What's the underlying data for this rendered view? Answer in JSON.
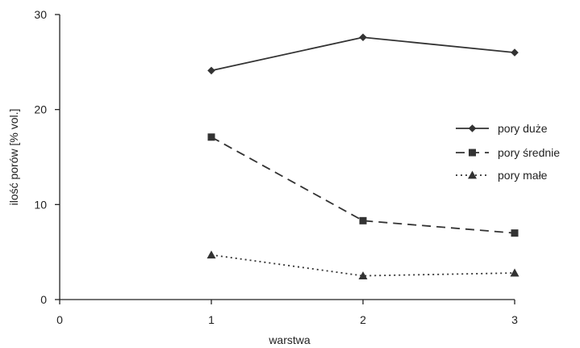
{
  "chart_data": {
    "type": "line",
    "title": "",
    "xlabel": "warstwa",
    "ylabel": "ilość porów [% vol.]",
    "xlim": [
      0,
      3
    ],
    "ylim": [
      0,
      30
    ],
    "x_ticks": [
      "0",
      "1",
      "2",
      "3"
    ],
    "y_ticks": [
      "0",
      "10",
      "20",
      "30"
    ],
    "grid": false,
    "legend_position": "right",
    "x": [
      1,
      2,
      3
    ],
    "series": [
      {
        "name": "pory duże",
        "values": [
          24.1,
          27.6,
          26.0
        ],
        "marker": "diamond",
        "line_style": "solid",
        "color": "#333333"
      },
      {
        "name": "pory średnie",
        "values": [
          17.1,
          8.3,
          7.0
        ],
        "marker": "square",
        "line_style": "dashed",
        "color": "#333333"
      },
      {
        "name": "pory małe",
        "values": [
          4.7,
          2.5,
          2.8
        ],
        "marker": "triangle",
        "line_style": "dotted",
        "color": "#333333"
      }
    ]
  }
}
